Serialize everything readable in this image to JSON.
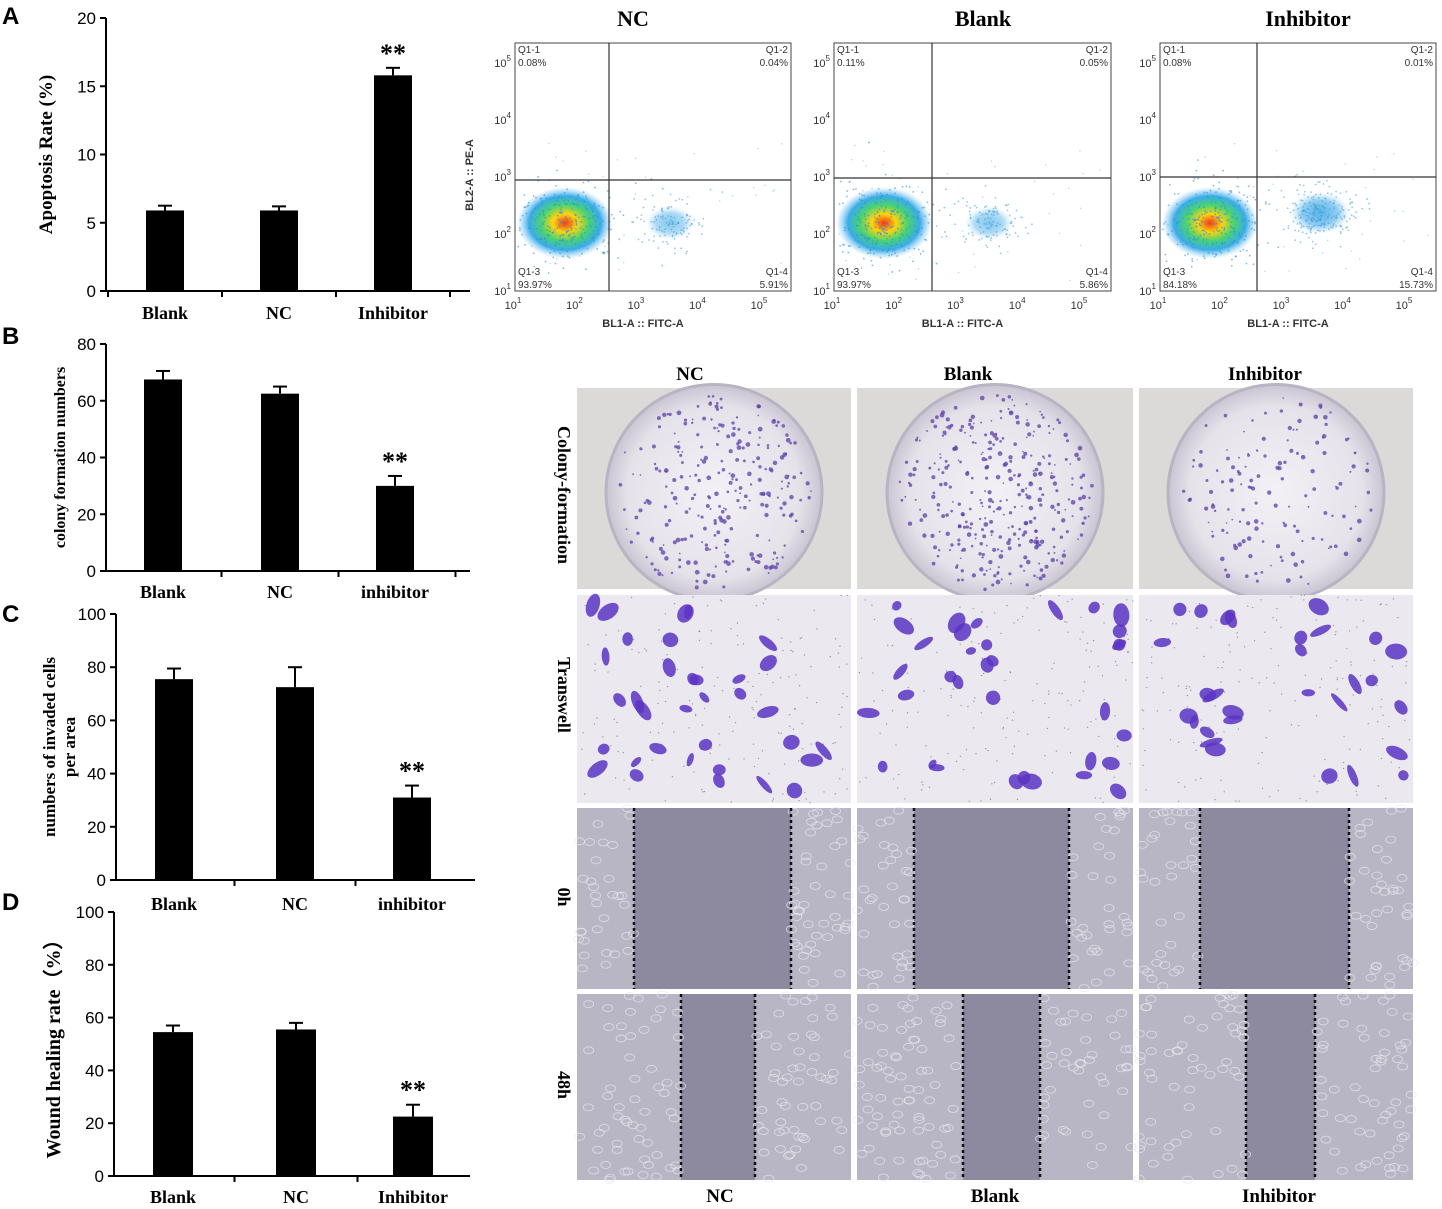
{
  "panel_letters": [
    "A",
    "B",
    "C",
    "D"
  ],
  "flow_headers": [
    "NC",
    "Blank",
    "Inhibitor"
  ],
  "flow_axes": {
    "y_label": "BL2-A :: PE-A",
    "x_label": "BL1-A :: FITC-A"
  },
  "flow_plots": [
    {
      "q1": "Q1-1",
      "q1v": "0.08%",
      "q2": "Q1-2",
      "q2v": "0.04%",
      "q3": "Q1-3",
      "q3v": "93.97%",
      "q4": "Q1-4",
      "q4v": "5.91%"
    },
    {
      "q1": "Q1-1",
      "q1v": "0.11%",
      "q2": "Q1-2",
      "q2v": "0.05%",
      "q3": "Q1-3",
      "q3v": "93.97%",
      "q4": "Q1-4",
      "q4v": "5.86%"
    },
    {
      "q1": "Q1-1",
      "q1v": "0.08%",
      "q2": "Q1-2",
      "q2v": "0.01%",
      "q3": "Q1-3",
      "q3v": "84.18%",
      "q4": "Q1-4",
      "q4v": "15.73%"
    }
  ],
  "image_grid": {
    "column_headers_top": [
      "NC",
      "Blank",
      "Inhibitor"
    ],
    "column_headers_bottom": [
      "NC",
      "Blank",
      "Inhibitor"
    ],
    "row_labels": [
      "Colony-formation",
      "Transwell",
      "0h",
      "48h"
    ]
  },
  "chart_data": [
    {
      "type": "bar",
      "panel": "A",
      "categories": [
        "Blank",
        "NC",
        "Inhibitor"
      ],
      "values": [
        5.9,
        5.9,
        15.8
      ],
      "errors": [
        0.35,
        0.3,
        0.55
      ],
      "significance": [
        "",
        "",
        "**"
      ],
      "ylabel": "Apoptosis Rate (%)",
      "ylim": [
        0,
        20
      ],
      "yticks": [
        0,
        5,
        10,
        15,
        20
      ]
    },
    {
      "type": "bar",
      "panel": "B",
      "categories": [
        "Blank",
        "NC",
        "inhibitor"
      ],
      "values": [
        67.5,
        62.5,
        30
      ],
      "errors": [
        3,
        2.5,
        3.5
      ],
      "significance": [
        "",
        "",
        "**"
      ],
      "ylabel": "colony formation numbers",
      "ylim": [
        0,
        80
      ],
      "yticks": [
        0,
        20,
        40,
        60,
        80
      ]
    },
    {
      "type": "bar",
      "panel": "C",
      "categories": [
        "Blank",
        "NC",
        "inhibitor"
      ],
      "values": [
        75.5,
        72.5,
        31
      ],
      "errors": [
        4,
        7.5,
        4.5
      ],
      "significance": [
        "",
        "",
        "**"
      ],
      "ylabel": "numbers of invaded cells per area",
      "ylim": [
        0,
        100
      ],
      "yticks": [
        0,
        20,
        40,
        60,
        80,
        100
      ]
    },
    {
      "type": "bar",
      "panel": "D",
      "categories": [
        "Blank",
        "NC",
        "Inhibitor"
      ],
      "values": [
        54.5,
        55.5,
        22.5
      ],
      "errors": [
        2.5,
        2.5,
        4.5
      ],
      "significance": [
        "",
        "",
        "**"
      ],
      "ylabel": "Wound healing rate（%）",
      "ylim": [
        0,
        100
      ],
      "yticks": [
        0,
        20,
        40,
        60,
        80,
        100
      ]
    }
  ]
}
